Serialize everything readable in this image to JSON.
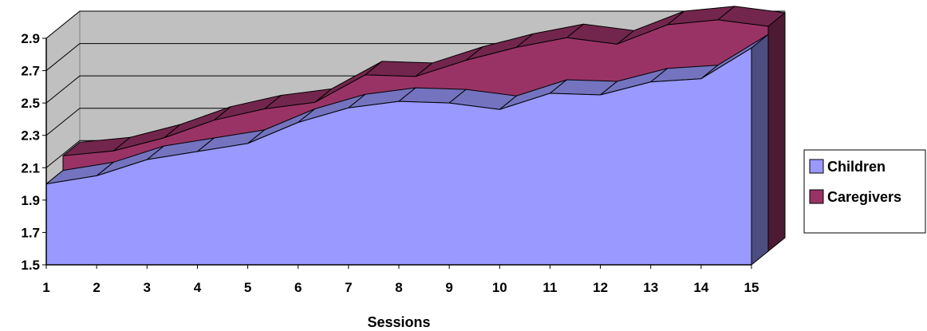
{
  "chart_data": {
    "type": "area",
    "title": "",
    "xlabel": "Sessions",
    "ylabel": "",
    "x": [
      1,
      2,
      3,
      4,
      5,
      6,
      7,
      8,
      9,
      10,
      11,
      12,
      13,
      14,
      15
    ],
    "ylim": [
      1.5,
      2.9
    ],
    "yticks": [
      "1.5",
      "1.7",
      "1.9",
      "2.1",
      "2.3",
      "2.5",
      "2.7",
      "2.9"
    ],
    "series": [
      {
        "name": "Children",
        "color": "#9999ff",
        "values": [
          2.0,
          2.05,
          2.15,
          2.2,
          2.25,
          2.38,
          2.47,
          2.51,
          2.5,
          2.46,
          2.56,
          2.55,
          2.63,
          2.65,
          2.84
        ]
      },
      {
        "name": "Caregivers",
        "color": "#993366",
        "values": [
          2.09,
          2.12,
          2.2,
          2.31,
          2.38,
          2.42,
          2.59,
          2.58,
          2.68,
          2.76,
          2.82,
          2.78,
          2.9,
          2.93,
          2.89
        ]
      }
    ],
    "grid": true,
    "legend": "right"
  }
}
